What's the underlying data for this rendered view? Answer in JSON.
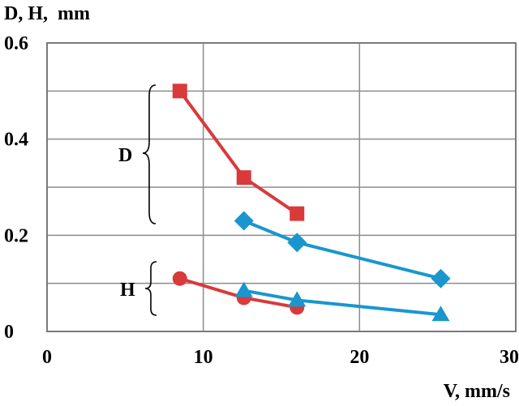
{
  "chart_data": {
    "type": "line",
    "ylabel": "D, H,  mm",
    "xlabel": "V, mm/s",
    "xlim": [
      0,
      30
    ],
    "ylim": [
      0,
      0.6
    ],
    "x_ticks": [
      0,
      10,
      20,
      30
    ],
    "y_ticks": [
      0,
      0.2,
      0.4,
      0.6
    ],
    "x_tick_labels": [
      "0",
      "10",
      "20",
      "30"
    ],
    "y_tick_labels": [
      "0",
      "0.2",
      "0.4",
      "0.6"
    ],
    "grid": true,
    "legend": "none",
    "group_labels": {
      "D": "D",
      "H": "H"
    },
    "series": [
      {
        "group": "D",
        "marker": "square",
        "color": "#d93a3a",
        "x": [
          8.5,
          12.6,
          16.0
        ],
        "y": [
          0.5,
          0.32,
          0.245
        ]
      },
      {
        "group": "D",
        "marker": "diamond",
        "color": "#1a96cf",
        "x": [
          12.6,
          16.0,
          25.2
        ],
        "y": [
          0.23,
          0.185,
          0.11
        ]
      },
      {
        "group": "H",
        "marker": "circle",
        "color": "#d93a3a",
        "x": [
          8.5,
          12.6,
          16.0
        ],
        "y": [
          0.11,
          0.07,
          0.05
        ]
      },
      {
        "group": "H",
        "marker": "triangle",
        "color": "#1a96cf",
        "x": [
          12.6,
          16.0,
          25.2
        ],
        "y": [
          0.085,
          0.065,
          0.035
        ]
      }
    ]
  }
}
